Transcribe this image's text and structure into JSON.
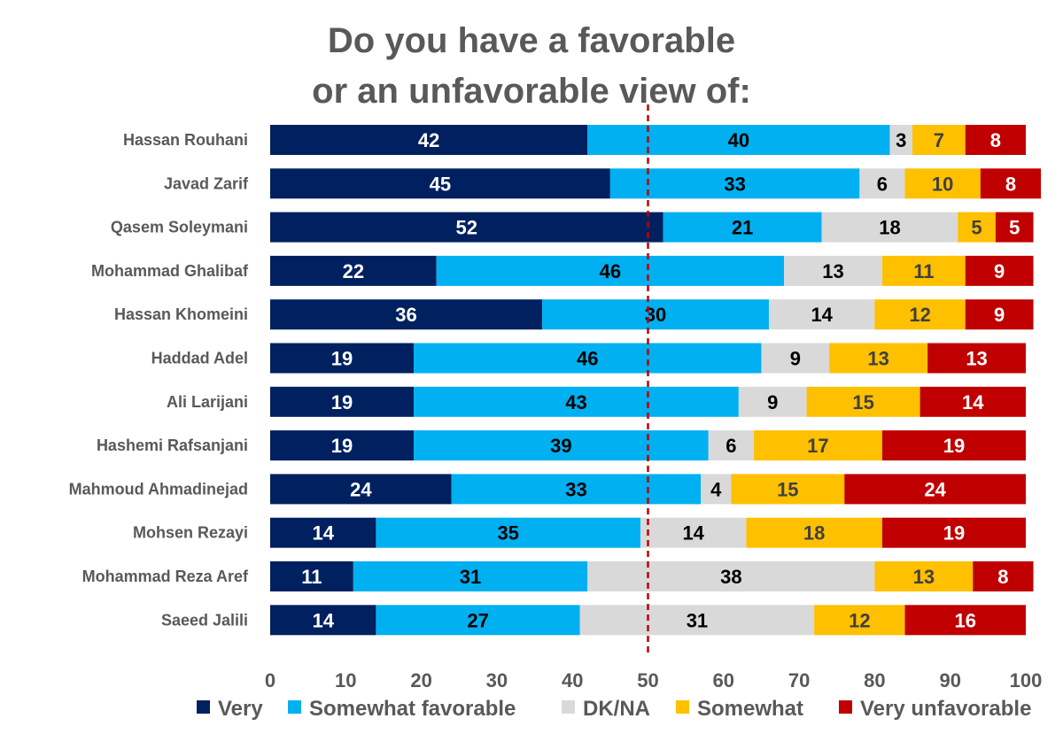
{
  "chart_data": {
    "type": "bar",
    "orientation": "horizontal",
    "stacked": true,
    "title": [
      "Do you have a favorable",
      "or an unfavorable view of:"
    ],
    "categories": [
      "Hassan Rouhani",
      "Javad Zarif",
      "Qasem Soleymani",
      "Mohammad Ghalibaf",
      "Hassan Khomeini",
      "Haddad Adel",
      "Ali Larijani",
      "Hashemi Rafsanjani",
      "Mahmoud Ahmadinejad",
      "Mohsen Rezayi",
      "Mohammad Reza Aref",
      "Saeed Jalili"
    ],
    "series": [
      {
        "name": "Very",
        "color": "#002060",
        "label_color": "#ffffff",
        "values": [
          42,
          45,
          52,
          22,
          36,
          19,
          19,
          19,
          24,
          14,
          11,
          14
        ]
      },
      {
        "name": "Somewhat favorable",
        "color": "#00b0f0",
        "label_color": "#000000",
        "values": [
          40,
          33,
          21,
          46,
          30,
          46,
          43,
          39,
          33,
          35,
          31,
          27
        ]
      },
      {
        "name": "DK/NA",
        "color": "#d9d9d9",
        "label_color": "#000000",
        "values": [
          3,
          6,
          18,
          13,
          14,
          9,
          9,
          6,
          4,
          14,
          38,
          31
        ]
      },
      {
        "name": "Somewhat",
        "color": "#ffc000",
        "label_color": "#404040",
        "values": [
          7,
          10,
          5,
          11,
          12,
          13,
          15,
          17,
          15,
          18,
          13,
          12
        ]
      },
      {
        "name": "Very unfavorable",
        "color": "#c00000",
        "label_color": "#ffffff",
        "values": [
          8,
          8,
          5,
          9,
          9,
          13,
          14,
          19,
          24,
          19,
          8,
          16
        ]
      }
    ],
    "xlim": [
      0,
      100
    ],
    "xticks": [
      0,
      10,
      20,
      30,
      40,
      50,
      60,
      70,
      80,
      90,
      100
    ],
    "reference_line": {
      "x": 50,
      "color": "#c00000",
      "style": "dashed"
    },
    "grid": false,
    "legend_position": "bottom"
  }
}
